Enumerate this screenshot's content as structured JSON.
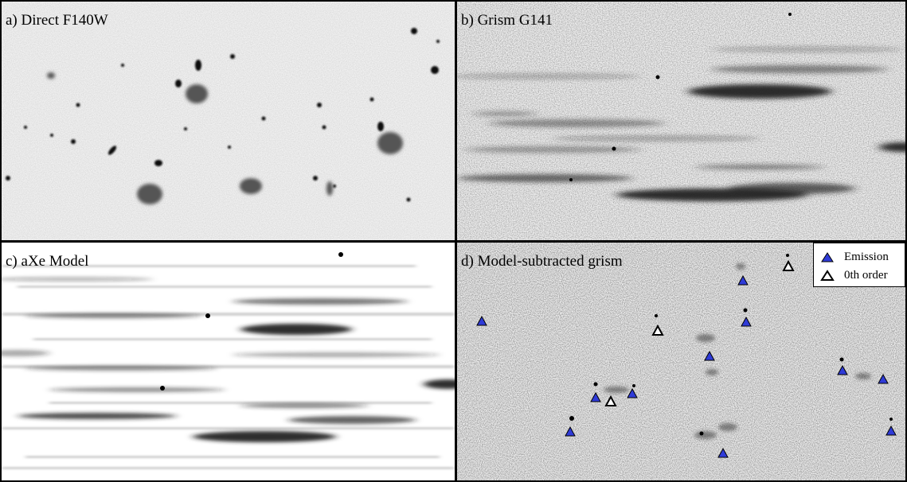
{
  "panels": {
    "a": {
      "label": "a) Direct F140W"
    },
    "b": {
      "label": "b) Grism G141"
    },
    "c": {
      "label": "c) aXe Model"
    },
    "d": {
      "label": "d) Model-subtracted grism"
    }
  },
  "legend": {
    "emission_label": "Emission",
    "zeroth_label": "0th order"
  },
  "colors": {
    "emission_marker": "#2f3bd8",
    "zeroth_marker_stroke": "#000000",
    "frame": "#000000",
    "background": "#ffffff"
  }
}
